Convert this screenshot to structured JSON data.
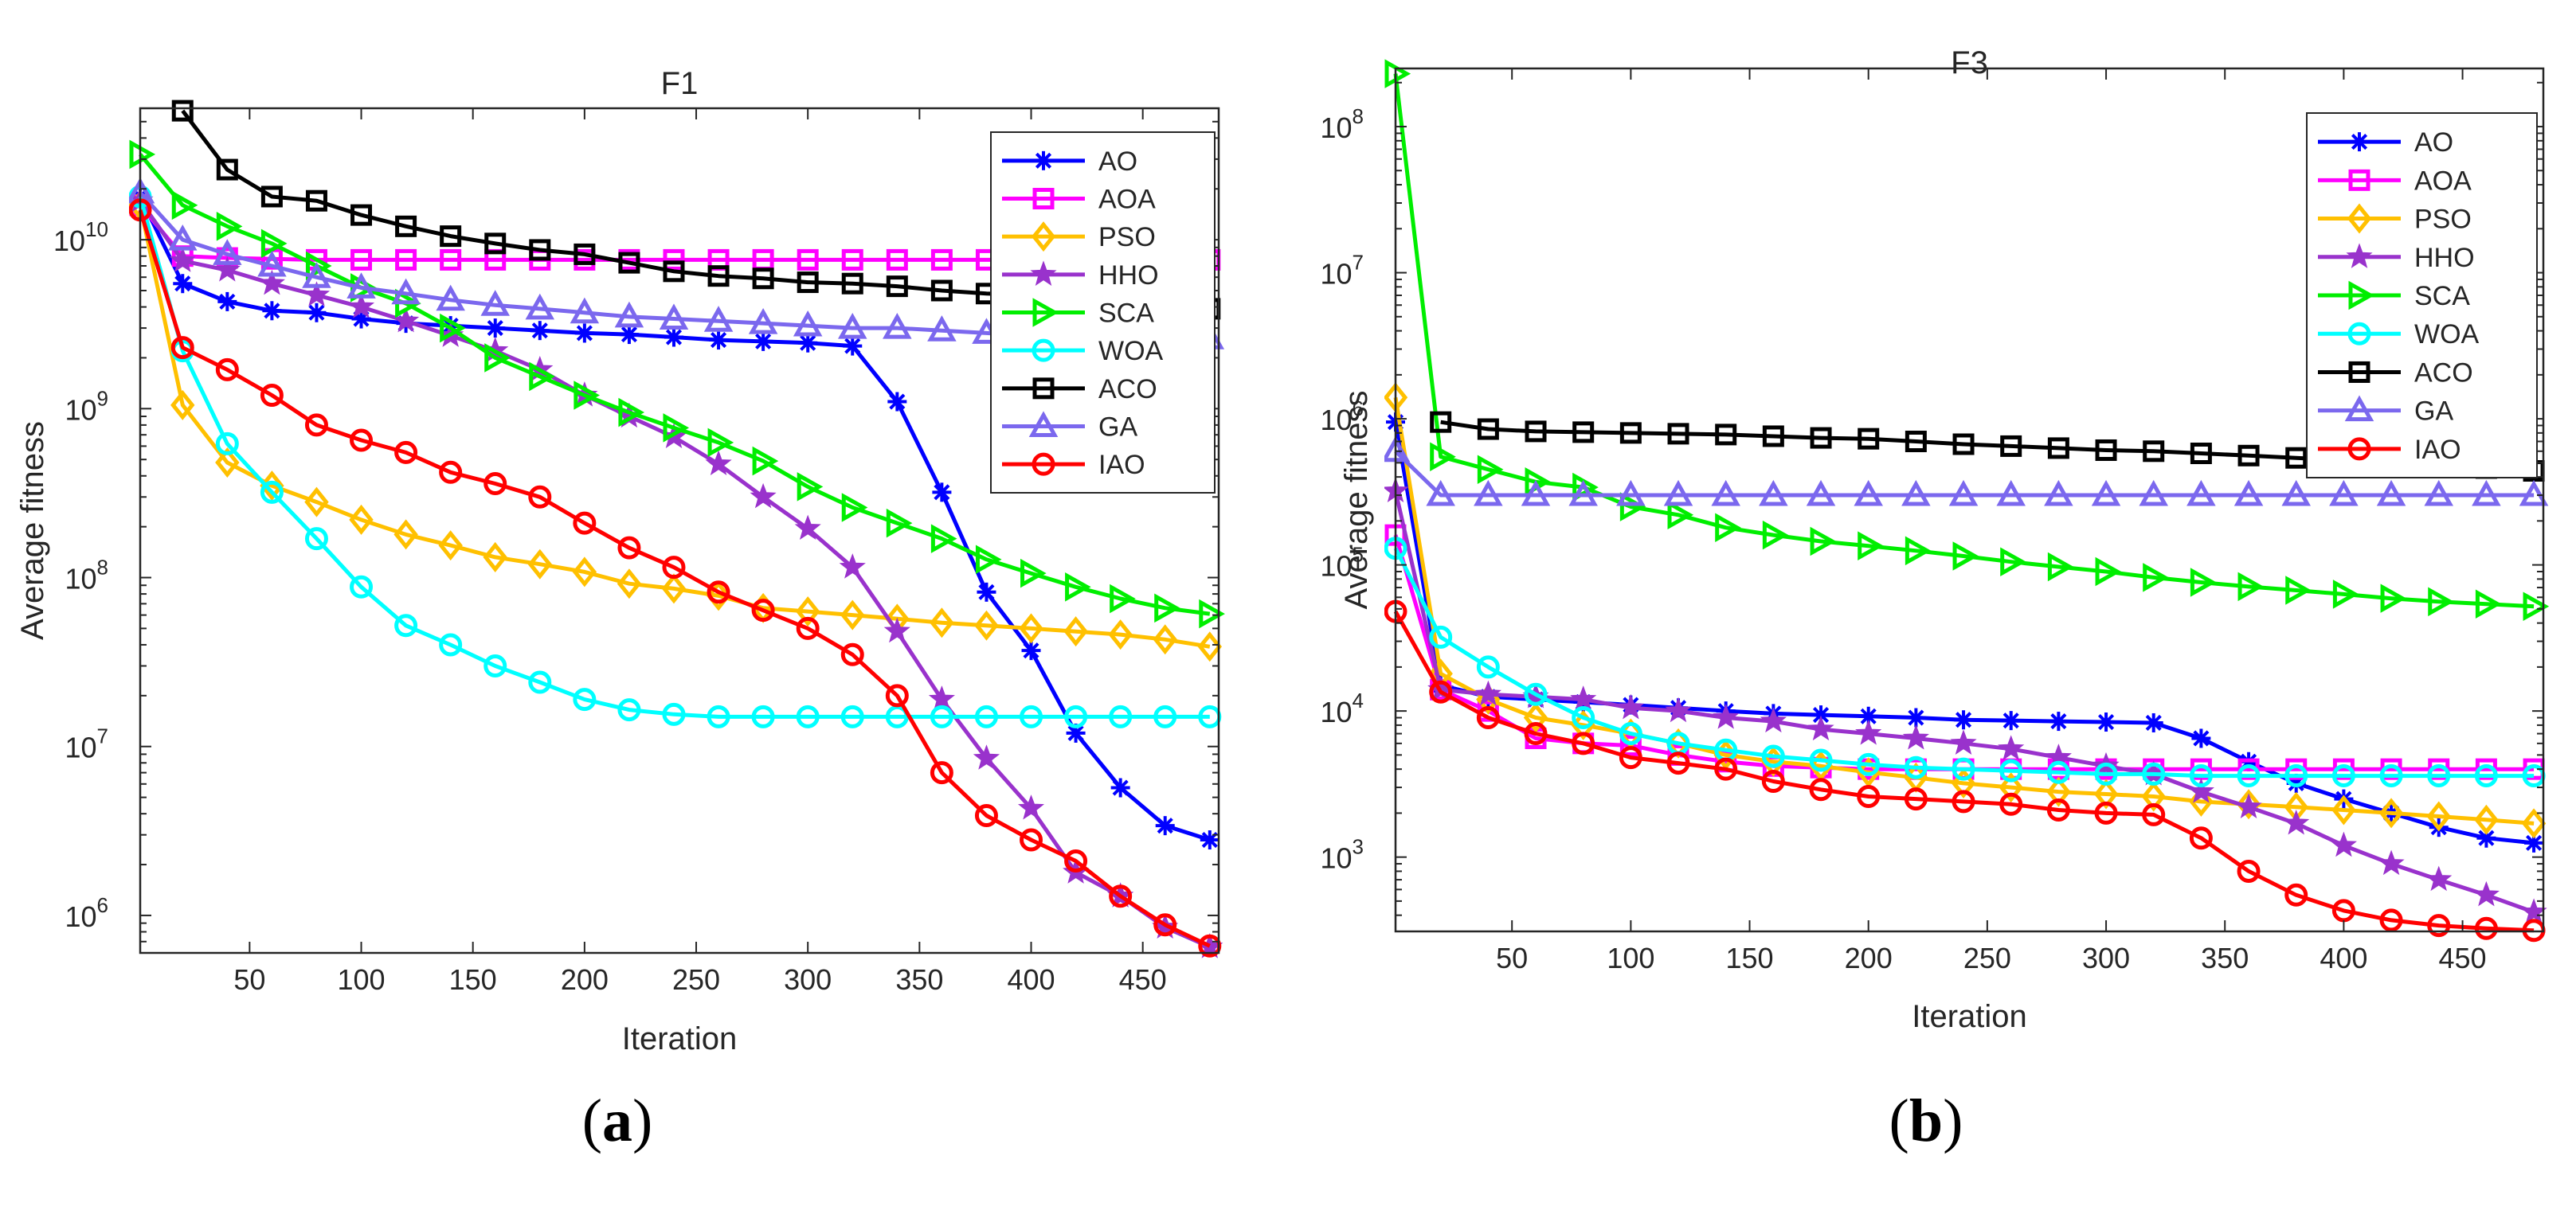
{
  "panel_labels": [
    "a",
    "b"
  ],
  "chart_data": [
    {
      "type": "line",
      "title": "F1",
      "xlabel": "Iteration",
      "ylabel": "Average fitness",
      "yscale": "log",
      "xlim": [
        1,
        484
      ],
      "ylim": [
        600000,
        60000000000
      ],
      "xticks": [
        50,
        100,
        150,
        200,
        250,
        300,
        350,
        400,
        450
      ],
      "xtick_labels": [
        "50",
        "100",
        "150",
        "200",
        "250",
        "300",
        "350",
        "400",
        "450"
      ],
      "yticks": [
        1000000,
        10000000,
        100000000,
        1000000000,
        10000000000
      ],
      "ytick_bases": [
        "10",
        "10",
        "10",
        "10",
        "10"
      ],
      "ytick_exponents": [
        "6",
        "7",
        "8",
        "9",
        "10"
      ],
      "legend_position": "top-right",
      "x": [
        1,
        20,
        40,
        60,
        80,
        100,
        120,
        140,
        160,
        180,
        200,
        220,
        240,
        260,
        280,
        300,
        320,
        340,
        360,
        380,
        400,
        420,
        440,
        460,
        480
      ],
      "series": [
        {
          "name": "AO",
          "color": "#0000ff",
          "marker": "asterisk",
          "values": [
            18000000000,
            5500000000,
            4300000000,
            3800000000,
            3700000000,
            3400000000,
            3200000000,
            3100000000,
            3000000000,
            2900000000,
            2800000000,
            2750000000,
            2650000000,
            2550000000,
            2500000000,
            2450000000,
            2350000000,
            1100000000,
            320000000,
            82000000,
            37000000,
            12000000,
            5700000,
            3400000,
            2800000
          ]
        },
        {
          "name": "AOA",
          "color": "#ff00ff",
          "marker": "square",
          "values": [
            16000000000,
            8000000000,
            7800000000,
            7700000000,
            7600000000,
            7600000000,
            7600000000,
            7600000000,
            7600000000,
            7600000000,
            7600000000,
            7600000000,
            7600000000,
            7600000000,
            7600000000,
            7600000000,
            7600000000,
            7600000000,
            7600000000,
            7600000000,
            7600000000,
            7600000000,
            7600000000,
            7600000000,
            7600000000
          ]
        },
        {
          "name": "PSO",
          "color": "#ffc000",
          "marker": "diamond",
          "values": [
            16000000000,
            1050000000,
            480000000,
            350000000,
            280000000,
            220000000,
            180000000,
            155000000,
            132000000,
            120000000,
            108000000,
            92000000,
            86000000,
            78000000,
            66000000,
            63000000,
            60000000,
            57000000,
            54000000,
            52000000,
            50000000,
            48000000,
            46000000,
            43000000,
            39000000
          ]
        },
        {
          "name": "HHO",
          "color": "#9932cc",
          "marker": "star",
          "values": [
            17000000000,
            7500000000,
            6600000000,
            5500000000,
            4700000000,
            4000000000,
            3300000000,
            2700000000,
            2200000000,
            1700000000,
            1200000000,
            900000000,
            680000000,
            470000000,
            300000000,
            195000000,
            115000000,
            48000000,
            19000000,
            8500000,
            4300000,
            1800000,
            1300000,
            850000,
            650000
          ]
        },
        {
          "name": "SCA",
          "color": "#00ee00",
          "marker": "triangle-right",
          "values": [
            32000000000,
            16000000000,
            12000000000,
            9500000000,
            7000000000,
            5200000000,
            4200000000,
            3000000000,
            2000000000,
            1550000000,
            1200000000,
            950000000,
            770000000,
            630000000,
            490000000,
            345000000,
            260000000,
            210000000,
            170000000,
            128000000,
            106000000,
            88000000,
            75000000,
            66000000,
            61000000
          ]
        },
        {
          "name": "WOA",
          "color": "#00ffff",
          "marker": "circle",
          "values": [
            18000000000,
            2200000000,
            620000000,
            320000000,
            170000000,
            88000000,
            52000000,
            40000000,
            30000000,
            24000000,
            19000000,
            16500000,
            15500000,
            15000000,
            15000000,
            15000000,
            15000000,
            15000000,
            15000000,
            15000000,
            15000000,
            15000000,
            15000000,
            15000000,
            15000000
          ]
        },
        {
          "name": "ACO",
          "color": "#000000",
          "marker": "square",
          "values": [
            null,
            58000000000,
            26000000000,
            18000000000,
            17000000000,
            14000000000,
            12000000000,
            10500000000,
            9500000000,
            8700000000,
            8200000000,
            7300000000,
            6500000000,
            6100000000,
            5900000000,
            5600000000,
            5500000000,
            5300000000,
            5000000000,
            4800000000,
            4700000000,
            4600000000,
            4400000000,
            4200000000,
            3900000000
          ]
        },
        {
          "name": "GA",
          "color": "#7b68ee",
          "marker": "triangle-up",
          "values": [
            19000000000,
            10000000000,
            8200000000,
            7000000000,
            6000000000,
            5200000000,
            4800000000,
            4400000000,
            4100000000,
            3900000000,
            3700000000,
            3500000000,
            3400000000,
            3300000000,
            3200000000,
            3100000000,
            3000000000,
            3000000000,
            2900000000,
            2800000000,
            2700000000,
            2700000000,
            2650000000,
            2600000000,
            2600000000
          ]
        },
        {
          "name": "IAO",
          "color": "#ff0000",
          "marker": "circle",
          "values": [
            15000000000,
            2300000000,
            1700000000,
            1200000000,
            800000000,
            650000000,
            550000000,
            420000000,
            360000000,
            300000000,
            210000000,
            150000000,
            115000000,
            82000000,
            64000000,
            50000000,
            35000000,
            20000000,
            7000000,
            3900000,
            2800000,
            2100000,
            1300000,
            880000,
            660000
          ]
        }
      ]
    },
    {
      "type": "line",
      "title": "F3",
      "xlabel": "Iteration",
      "ylabel": "Average fitness",
      "yscale": "log",
      "xlim": [
        1,
        484
      ],
      "ylim": [
        310,
        250000000
      ],
      "xticks": [
        50,
        100,
        150,
        200,
        250,
        300,
        350,
        400,
        450
      ],
      "xtick_labels": [
        "50",
        "100",
        "150",
        "200",
        "250",
        "300",
        "350",
        "400",
        "450"
      ],
      "yticks": [
        1000,
        10000,
        100000,
        1000000,
        10000000,
        100000000
      ],
      "ytick_bases": [
        "10",
        "10",
        "10",
        "10",
        "10",
        "10"
      ],
      "ytick_exponents": [
        "3",
        "4",
        "5",
        "6",
        "7",
        "8"
      ],
      "legend_position": "top-right",
      "x": [
        1,
        20,
        40,
        60,
        80,
        100,
        120,
        140,
        160,
        180,
        200,
        220,
        240,
        260,
        280,
        300,
        320,
        340,
        360,
        380,
        400,
        420,
        440,
        460,
        480
      ],
      "series": [
        {
          "name": "AO",
          "color": "#0000ff",
          "marker": "asterisk",
          "values": [
            950000,
            15000,
            12500,
            12000,
            11500,
            11000,
            10500,
            10000,
            9600,
            9400,
            9200,
            9000,
            8700,
            8600,
            8500,
            8400,
            8300,
            6500,
            4500,
            3200,
            2500,
            2000,
            1600,
            1350,
            1250
          ]
        },
        {
          "name": "AOA",
          "color": "#ff00ff",
          "marker": "square",
          "values": [
            160000,
            14000,
            10000,
            6500,
            6000,
            5800,
            5000,
            4500,
            4200,
            4100,
            4000,
            4000,
            4000,
            4000,
            4000,
            4000,
            4000,
            4000,
            4000,
            4000,
            4000,
            4000,
            4000,
            4000,
            4000
          ]
        },
        {
          "name": "PSO",
          "color": "#ffc000",
          "marker": "diamond",
          "values": [
            1400000,
            18000,
            12000,
            9000,
            8000,
            7000,
            6000,
            5000,
            4500,
            4200,
            3800,
            3500,
            3200,
            3000,
            2800,
            2700,
            2600,
            2400,
            2300,
            2200,
            2100,
            2000,
            1900,
            1800,
            1700
          ]
        },
        {
          "name": "HHO",
          "color": "#9932cc",
          "marker": "star",
          "values": [
            320000,
            14000,
            13000,
            12500,
            12000,
            10500,
            10000,
            9000,
            8500,
            7500,
            7000,
            6500,
            6000,
            5500,
            4800,
            4200,
            3700,
            2800,
            2200,
            1700,
            1200,
            900,
            700,
            550,
            420
          ]
        },
        {
          "name": "SCA",
          "color": "#00ee00",
          "marker": "triangle-right",
          "values": [
            230000000,
            550000,
            450000,
            370000,
            340000,
            250000,
            220000,
            180000,
            160000,
            145000,
            135000,
            125000,
            115000,
            105000,
            97000,
            90000,
            82000,
            76000,
            71000,
            67000,
            63000,
            59000,
            56000,
            54000,
            52000
          ]
        },
        {
          "name": "WOA",
          "color": "#00ffff",
          "marker": "circle",
          "values": [
            130000,
            32000,
            20000,
            13000,
            9000,
            7000,
            6000,
            5400,
            4900,
            4600,
            4300,
            4100,
            4000,
            3900,
            3800,
            3700,
            3700,
            3600,
            3600,
            3600,
            3600,
            3600,
            3600,
            3600,
            3600
          ]
        },
        {
          "name": "ACO",
          "color": "#000000",
          "marker": "square",
          "values": [
            null,
            950000,
            850000,
            820000,
            810000,
            800000,
            790000,
            780000,
            760000,
            740000,
            730000,
            700000,
            670000,
            650000,
            630000,
            610000,
            600000,
            580000,
            560000,
            540000,
            520000,
            500000,
            480000,
            460000,
            440000
          ]
        },
        {
          "name": "GA",
          "color": "#7b68ee",
          "marker": "triangle-up",
          "values": [
            600000,
            300000,
            300000,
            300000,
            300000,
            300000,
            300000,
            300000,
            300000,
            300000,
            300000,
            300000,
            300000,
            300000,
            300000,
            300000,
            300000,
            300000,
            300000,
            300000,
            300000,
            300000,
            300000,
            300000,
            300000
          ]
        },
        {
          "name": "IAO",
          "color": "#ff0000",
          "marker": "circle",
          "values": [
            48000,
            13500,
            9000,
            7000,
            6000,
            4800,
            4400,
            4000,
            3300,
            2900,
            2600,
            2500,
            2400,
            2300,
            2100,
            2000,
            1950,
            1350,
            800,
            550,
            430,
            370,
            340,
            325,
            315
          ]
        }
      ]
    }
  ]
}
